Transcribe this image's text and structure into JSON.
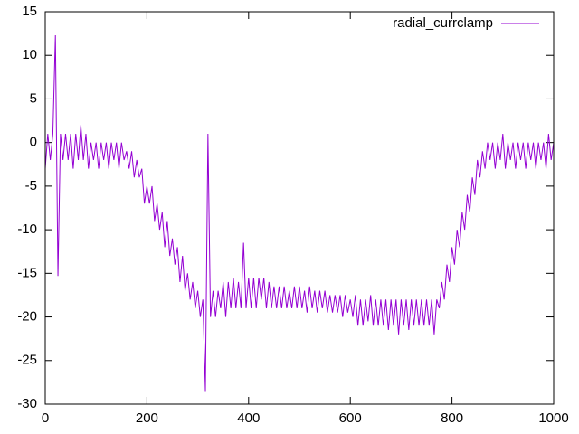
{
  "chart_data": {
    "type": "line",
    "x": [
      0,
      5,
      10,
      15,
      20,
      25,
      30,
      35,
      40,
      45,
      50,
      55,
      60,
      65,
      70,
      75,
      80,
      85,
      90,
      95,
      100,
      105,
      110,
      115,
      120,
      125,
      130,
      135,
      140,
      145,
      150,
      155,
      160,
      165,
      170,
      175,
      180,
      185,
      190,
      195,
      200,
      205,
      210,
      215,
      220,
      225,
      230,
      235,
      240,
      245,
      250,
      255,
      260,
      265,
      270,
      275,
      280,
      285,
      290,
      295,
      300,
      305,
      310,
      315,
      320,
      325,
      330,
      335,
      340,
      345,
      350,
      355,
      360,
      365,
      370,
      375,
      380,
      385,
      390,
      395,
      400,
      405,
      410,
      415,
      420,
      425,
      430,
      435,
      440,
      445,
      450,
      455,
      460,
      465,
      470,
      475,
      480,
      485,
      490,
      495,
      500,
      505,
      510,
      515,
      520,
      525,
      530,
      535,
      540,
      545,
      550,
      555,
      560,
      565,
      570,
      575,
      580,
      585,
      590,
      595,
      600,
      605,
      610,
      615,
      620,
      625,
      630,
      635,
      640,
      645,
      650,
      655,
      660,
      665,
      670,
      675,
      680,
      685,
      690,
      695,
      700,
      705,
      710,
      715,
      720,
      725,
      730,
      735,
      740,
      745,
      750,
      755,
      760,
      765,
      770,
      775,
      780,
      785,
      790,
      795,
      800,
      805,
      810,
      815,
      820,
      825,
      830,
      835,
      840,
      845,
      850,
      855,
      860,
      865,
      870,
      875,
      880,
      885,
      890,
      895,
      900,
      905,
      910,
      915,
      920,
      925,
      930,
      935,
      940,
      945,
      950,
      955,
      960,
      965,
      970,
      975,
      980,
      985,
      990,
      995,
      1000
    ],
    "series": [
      {
        "name": "radial_currclamp",
        "color": "#9400d3",
        "values": [
          -3,
          1,
          -2,
          1,
          12.3,
          -15.3,
          1,
          -2,
          1,
          -2,
          1,
          -3,
          1,
          -2,
          2,
          -2,
          1,
          -3,
          0,
          -2,
          0,
          -3,
          0,
          -2,
          0,
          -3,
          0,
          -2,
          0,
          -3,
          0,
          -2,
          -1,
          -3,
          -1,
          -4,
          -2,
          -4,
          -3,
          -7,
          -5,
          -7,
          -5,
          -9,
          -7,
          -10,
          -8,
          -12,
          -9,
          -13,
          -11,
          -14,
          -12,
          -16,
          -13,
          -17,
          -15,
          -18,
          -16,
          -19,
          -17,
          -20,
          -18,
          -28.5,
          1,
          -20,
          -17,
          -20,
          -17,
          -19,
          -16,
          -20,
          -16,
          -19,
          -15.5,
          -19,
          -16,
          -19,
          -11.5,
          -19,
          -15.5,
          -19,
          -15.5,
          -19,
          -15.5,
          -18,
          -15.5,
          -19,
          -16,
          -19,
          -16.5,
          -19,
          -16.5,
          -19,
          -16.5,
          -19,
          -17,
          -19,
          -16.5,
          -19,
          -16.5,
          -19,
          -17,
          -19.5,
          -16.5,
          -19,
          -17,
          -19.5,
          -17,
          -19,
          -17,
          -19.5,
          -17.5,
          -19.5,
          -17.5,
          -19.5,
          -17.5,
          -20,
          -17.5,
          -19.5,
          -18,
          -20,
          -17.5,
          -21,
          -18,
          -21,
          -18,
          -20.5,
          -17.5,
          -21,
          -18,
          -21,
          -18,
          -21,
          -18,
          -21.5,
          -18,
          -21,
          -18,
          -22,
          -18,
          -21,
          -18,
          -21.5,
          -18,
          -21,
          -18,
          -21,
          -18,
          -21,
          -18,
          -21,
          -18,
          -22,
          -18,
          -19,
          -16,
          -18,
          -14,
          -16,
          -12,
          -14,
          -10,
          -12,
          -8,
          -10,
          -6,
          -8,
          -4,
          -6,
          -2,
          -4,
          -1,
          -3,
          0,
          -2,
          0,
          -3,
          0,
          -2,
          1,
          -3,
          0,
          -2,
          0,
          -3,
          0,
          -2,
          0,
          -3,
          0,
          -2,
          0,
          -3,
          0,
          -2,
          0,
          -3,
          1,
          -2,
          0
        ]
      }
    ],
    "xlim": [
      0,
      1000
    ],
    "xticks": [
      0,
      200,
      400,
      600,
      800,
      1000
    ],
    "ylim": [
      -30,
      15
    ],
    "yticks": [
      -30,
      -25,
      -20,
      -15,
      -10,
      -5,
      0,
      5,
      10,
      15
    ],
    "legend": "upper right"
  }
}
